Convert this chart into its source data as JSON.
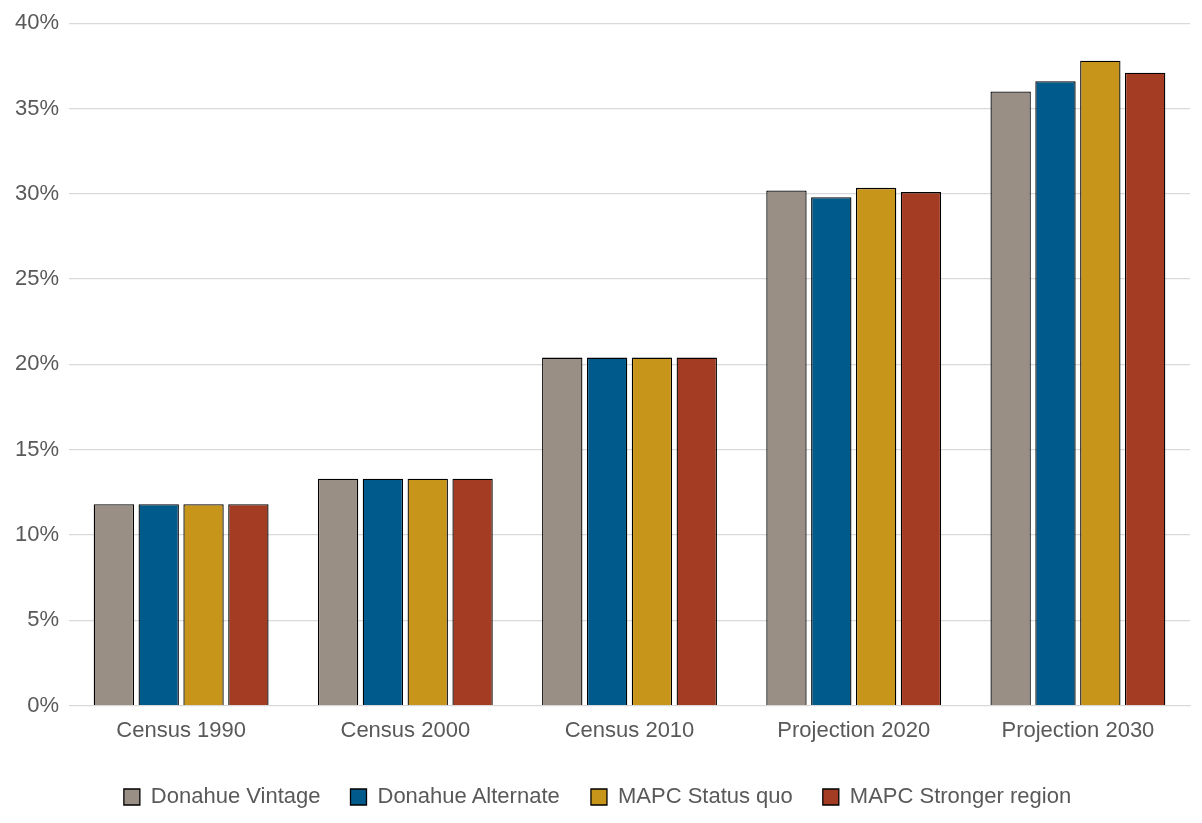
{
  "chart_data": {
    "type": "bar",
    "categories": [
      "Census 1990",
      "Census 2000",
      "Census 2010",
      "Projection 2020",
      "Projection 2030"
    ],
    "series": [
      {
        "name": "Donahue Vintage",
        "color": "#998f85",
        "values": [
          11.8,
          13.3,
          20.4,
          30.2,
          36.0
        ]
      },
      {
        "name": "Donahue Alternate",
        "color": "#005a8c",
        "values": [
          11.8,
          13.3,
          20.4,
          29.8,
          36.6
        ]
      },
      {
        "name": "MAPC Status quo",
        "color": "#c8951b",
        "values": [
          11.8,
          13.3,
          20.4,
          30.35,
          37.8
        ]
      },
      {
        "name": "MAPC Stronger region",
        "color": "#a33c22",
        "values": [
          11.8,
          13.3,
          20.4,
          30.1,
          37.1
        ]
      }
    ],
    "ylim": [
      0,
      40
    ],
    "yticks": [
      {
        "value": 0,
        "label": "0%"
      },
      {
        "value": 5,
        "label": "5%"
      },
      {
        "value": 10,
        "label": "10%"
      },
      {
        "value": 15,
        "label": "15%"
      },
      {
        "value": 20,
        "label": "20%"
      },
      {
        "value": 25,
        "label": "25%"
      },
      {
        "value": 30,
        "label": "30%"
      },
      {
        "value": 35,
        "label": "35%"
      },
      {
        "value": 40,
        "label": "40%"
      }
    ],
    "grid": "y",
    "legend": "bottom"
  }
}
